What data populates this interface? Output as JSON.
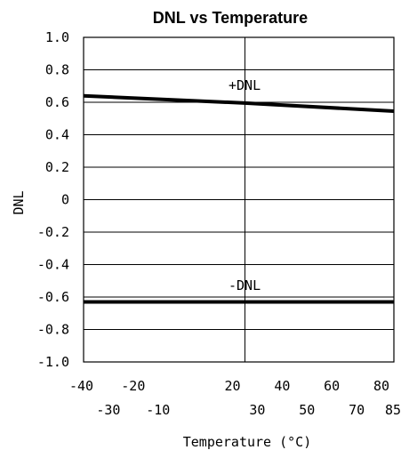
{
  "chart_data": {
    "type": "line",
    "title": "DNL vs Temperature",
    "xlabel": "Temperature (°C)",
    "ylabel": "DNL",
    "xlim": [
      -40,
      85
    ],
    "ylim": [
      -1.0,
      1.0
    ],
    "grid": true,
    "y_ticks": [
      "1.0",
      "0.8",
      "0.6",
      "0.4",
      "0.2",
      "0",
      "-0.2",
      "-0.4",
      "-0.6",
      "-0.8",
      "-1.0"
    ],
    "x_ticks_row1": [
      "-40",
      "-20",
      "20",
      "40",
      "60",
      "80"
    ],
    "x_ticks_row2": [
      "-30",
      "-10",
      "30",
      "50",
      "70",
      "85"
    ],
    "series": [
      {
        "name": "+DNL",
        "x": [
          -40,
          25,
          85
        ],
        "y": [
          0.64,
          0.595,
          0.545
        ]
      },
      {
        "name": "-DNL",
        "x": [
          -40,
          85
        ],
        "y": [
          -0.63,
          -0.63
        ]
      }
    ]
  }
}
